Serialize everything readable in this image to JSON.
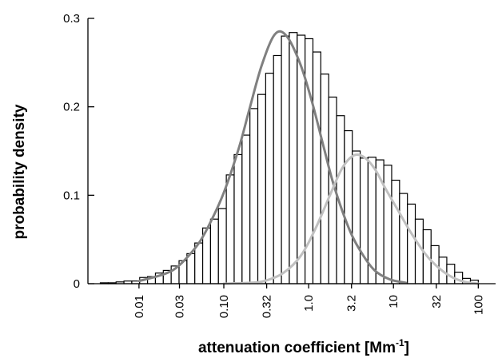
{
  "chart_data": {
    "type": "bar",
    "title": "",
    "xlabel": "attenuation coefficient [Mm",
    "xlabel_superscript": "-1",
    "xlabel_suffix": "]",
    "ylabel": "probability density",
    "x_scale": "log",
    "xlim": [
      0.0025,
      160
    ],
    "ylim": [
      0,
      0.3
    ],
    "y_ticks": [
      0,
      0.1,
      0.2,
      0.3
    ],
    "y_tick_labels": [
      "0",
      "0.1",
      "0.2",
      "0.3"
    ],
    "x_ticks": [
      0.01,
      0.03,
      0.1,
      0.32,
      1.0,
      3.2,
      10,
      32,
      100
    ],
    "x_tick_labels": [
      "0.01",
      "0.03",
      "0.10",
      "0.32",
      "1.0",
      "3.2",
      "10",
      "32",
      "100"
    ],
    "grid": false,
    "legend": "none",
    "colors": {
      "bar_fill": "#ffffff",
      "bar_edge": "#000000",
      "fit1": "#808080",
      "fit2": "#c0c0c0"
    },
    "histogram": {
      "bin_edges_start": 0.0035,
      "bin_edges_end": 100,
      "values": [
        0.001,
        0.001,
        0.002,
        0.003,
        0.003,
        0.007,
        0.008,
        0.012,
        0.015,
        0.02,
        0.026,
        0.034,
        0.046,
        0.063,
        0.073,
        0.085,
        0.123,
        0.146,
        0.168,
        0.198,
        0.214,
        0.238,
        0.258,
        0.28,
        0.284,
        0.281,
        0.277,
        0.262,
        0.237,
        0.211,
        0.19,
        0.173,
        0.15,
        0.142,
        0.143,
        0.14,
        0.134,
        0.117,
        0.102,
        0.09,
        0.073,
        0.061,
        0.043,
        0.03,
        0.022,
        0.013,
        0.006,
        0.004
      ]
    },
    "series": [
      {
        "type": "line",
        "x": [
          0.01,
          0.02,
          0.03,
          0.05,
          0.07,
          0.1,
          0.15,
          0.2,
          0.28,
          0.4,
          0.55,
          0.8,
          1.1,
          1.5,
          2.0,
          3.0,
          4.2,
          6.0,
          9.0,
          14
        ],
        "values": [
          0.003,
          0.011,
          0.021,
          0.045,
          0.07,
          0.103,
          0.153,
          0.197,
          0.247,
          0.282,
          0.28,
          0.248,
          0.205,
          0.155,
          0.11,
          0.062,
          0.035,
          0.015,
          0.005,
          0.001
        ]
      },
      {
        "type": "line",
        "x": [
          0.1,
          0.2,
          0.3,
          0.5,
          0.8,
          1.2,
          1.8,
          2.5,
          3.4,
          4.5,
          6.0,
          8.0,
          11,
          16,
          24,
          35,
          50,
          70,
          100
        ],
        "values": [
          0.0,
          0.001,
          0.003,
          0.012,
          0.031,
          0.062,
          0.101,
          0.131,
          0.145,
          0.143,
          0.13,
          0.108,
          0.085,
          0.058,
          0.033,
          0.017,
          0.007,
          0.002,
          0.0
        ]
      }
    ]
  }
}
